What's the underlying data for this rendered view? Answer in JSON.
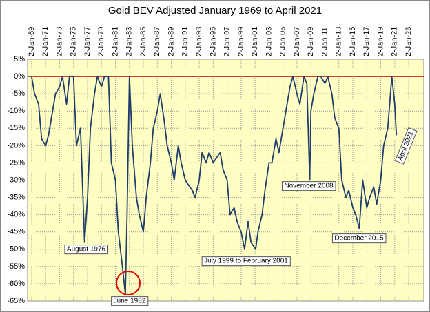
{
  "chart_data": {
    "type": "line",
    "title": "Gold BEV Adjusted  January 1969 to April 2021",
    "x": [
      "1969-01",
      "1969-06",
      "1970-01",
      "1970-06",
      "1971-01",
      "1971-06",
      "1972-01",
      "1972-06",
      "1973-01",
      "1973-06",
      "1974-01",
      "1974-06",
      "1975-01",
      "1975-06",
      "1976-01",
      "1976-08",
      "1977-01",
      "1977-06",
      "1978-01",
      "1978-06",
      "1979-01",
      "1979-06",
      "1980-01",
      "1980-06",
      "1981-01",
      "1981-06",
      "1982-01",
      "1982-06",
      "1982-09",
      "1983-01",
      "1983-06",
      "1984-01",
      "1984-06",
      "1985-01",
      "1985-06",
      "1986-01",
      "1986-06",
      "1987-01",
      "1987-06",
      "1988-01",
      "1988-06",
      "1989-01",
      "1989-06",
      "1990-01",
      "1990-06",
      "1991-01",
      "1992-01",
      "1992-06",
      "1993-01",
      "1993-06",
      "1994-01",
      "1994-06",
      "1995-01",
      "1996-01",
      "1996-06",
      "1997-01",
      "1997-06",
      "1998-01",
      "1998-06",
      "1999-01",
      "1999-07",
      "2000-01",
      "2000-06",
      "2001-02",
      "2001-06",
      "2002-01",
      "2002-06",
      "2003-01",
      "2003-06",
      "2004-01",
      "2004-06",
      "2005-01",
      "2005-06",
      "2006-01",
      "2006-06",
      "2007-01",
      "2007-06",
      "2008-01",
      "2008-06",
      "2008-11",
      "2009-01",
      "2009-06",
      "2010-01",
      "2010-06",
      "2011-01",
      "2011-06",
      "2012-01",
      "2012-06",
      "2013-01",
      "2013-06",
      "2014-01",
      "2014-06",
      "2015-01",
      "2015-06",
      "2015-12",
      "2016-06",
      "2017-01",
      "2017-06",
      "2018-01",
      "2018-06",
      "2019-01",
      "2019-06",
      "2020-01",
      "2020-08",
      "2021-01",
      "2021-04"
    ],
    "series": [
      {
        "name": "Gold BEV",
        "color": "#1f3d6b",
        "values": [
          0,
          -5,
          -8,
          -18,
          -20,
          -17,
          -10,
          -5,
          -3,
          0,
          -8,
          0,
          0,
          -20,
          -15,
          -48,
          -35,
          -15,
          -5,
          0,
          -3,
          0,
          0,
          -25,
          -30,
          -45,
          -55,
          -63,
          -40,
          0,
          -20,
          -35,
          -40,
          -45,
          -35,
          -25,
          -15,
          -10,
          -5,
          -13,
          -20,
          -25,
          -30,
          -20,
          -25,
          -30,
          -33,
          -35,
          -30,
          -22,
          -25,
          -22,
          -25,
          -22,
          -27,
          -30,
          -40,
          -38,
          -42,
          -45,
          -50,
          -42,
          -48,
          -50,
          -45,
          -40,
          -33,
          -25,
          -25,
          -18,
          -22,
          -15,
          -10,
          -3,
          0,
          -5,
          -8,
          0,
          -2,
          -30,
          -10,
          -5,
          0,
          0,
          -2,
          0,
          -5,
          -12,
          -15,
          -30,
          -35,
          -33,
          -38,
          -40,
          -44,
          -30,
          -38,
          -35,
          -32,
          -37,
          -30,
          -20,
          -15,
          0,
          -8,
          -17
        ]
      }
    ],
    "xlim": [
      "1968-06",
      "2025-03"
    ],
    "xticks": [
      {
        "value": "1969-01",
        "label": "2-Jan-69"
      },
      {
        "value": "1971-01",
        "label": "2-Jan-71"
      },
      {
        "value": "1973-01",
        "label": "2-Jan-73"
      },
      {
        "value": "1975-01",
        "label": "2-Jan-75"
      },
      {
        "value": "1977-01",
        "label": "2-Jan-77"
      },
      {
        "value": "1979-01",
        "label": "2-Jan-79"
      },
      {
        "value": "1981-01",
        "label": "2-Jan-81"
      },
      {
        "value": "1983-01",
        "label": "2-Jan-83"
      },
      {
        "value": "1985-01",
        "label": "2-Jan-85"
      },
      {
        "value": "1987-01",
        "label": "2-Jan-87"
      },
      {
        "value": "1989-01",
        "label": "2-Jan-89"
      },
      {
        "value": "1991-01",
        "label": "2-Jan-91"
      },
      {
        "value": "1993-01",
        "label": "2-Jan-93"
      },
      {
        "value": "1995-01",
        "label": "2-Jan-95"
      },
      {
        "value": "1997-01",
        "label": "2-Jan-97"
      },
      {
        "value": "1999-01",
        "label": "2-Jan-99"
      },
      {
        "value": "2001-01",
        "label": "2-Jan-01"
      },
      {
        "value": "2003-01",
        "label": "2-Jan-03"
      },
      {
        "value": "2005-01",
        "label": "2-Jan-05"
      },
      {
        "value": "2007-01",
        "label": "2-Jan-07"
      },
      {
        "value": "2009-01",
        "label": "2-Jan-09"
      },
      {
        "value": "2011-01",
        "label": "2-Jan-11"
      },
      {
        "value": "2013-01",
        "label": "2-Jan-13"
      },
      {
        "value": "2015-01",
        "label": "2-Jan-15"
      },
      {
        "value": "2017-01",
        "label": "2-Jan-17"
      },
      {
        "value": "2019-01",
        "label": "2-Jan-19"
      },
      {
        "value": "2021-01",
        "label": "2-Jan-21"
      },
      {
        "value": "2023-01",
        "label": "2-Jan-23"
      }
    ],
    "ylim": [
      -65,
      5
    ],
    "yticks": [
      {
        "value": 5,
        "label": "5%"
      },
      {
        "value": 0,
        "label": "0%"
      },
      {
        "value": -5,
        "label": "-5%"
      },
      {
        "value": -10,
        "label": "-10%"
      },
      {
        "value": -15,
        "label": "-15%"
      },
      {
        "value": -20,
        "label": "-20%"
      },
      {
        "value": -25,
        "label": "-25%"
      },
      {
        "value": -30,
        "label": "-30%"
      },
      {
        "value": -35,
        "label": "-35%"
      },
      {
        "value": -40,
        "label": "-40%"
      },
      {
        "value": -45,
        "label": "-45%"
      },
      {
        "value": -50,
        "label": "-50%"
      },
      {
        "value": -55,
        "label": "-55%"
      },
      {
        "value": -60,
        "label": "-60%"
      },
      {
        "value": -65,
        "label": "-65%"
      }
    ],
    "grid": true,
    "annotations": [
      "August 1976",
      "June 1982",
      "July 1999 to February 2001",
      "November 2008",
      "December 2015",
      "April 2021"
    ]
  }
}
